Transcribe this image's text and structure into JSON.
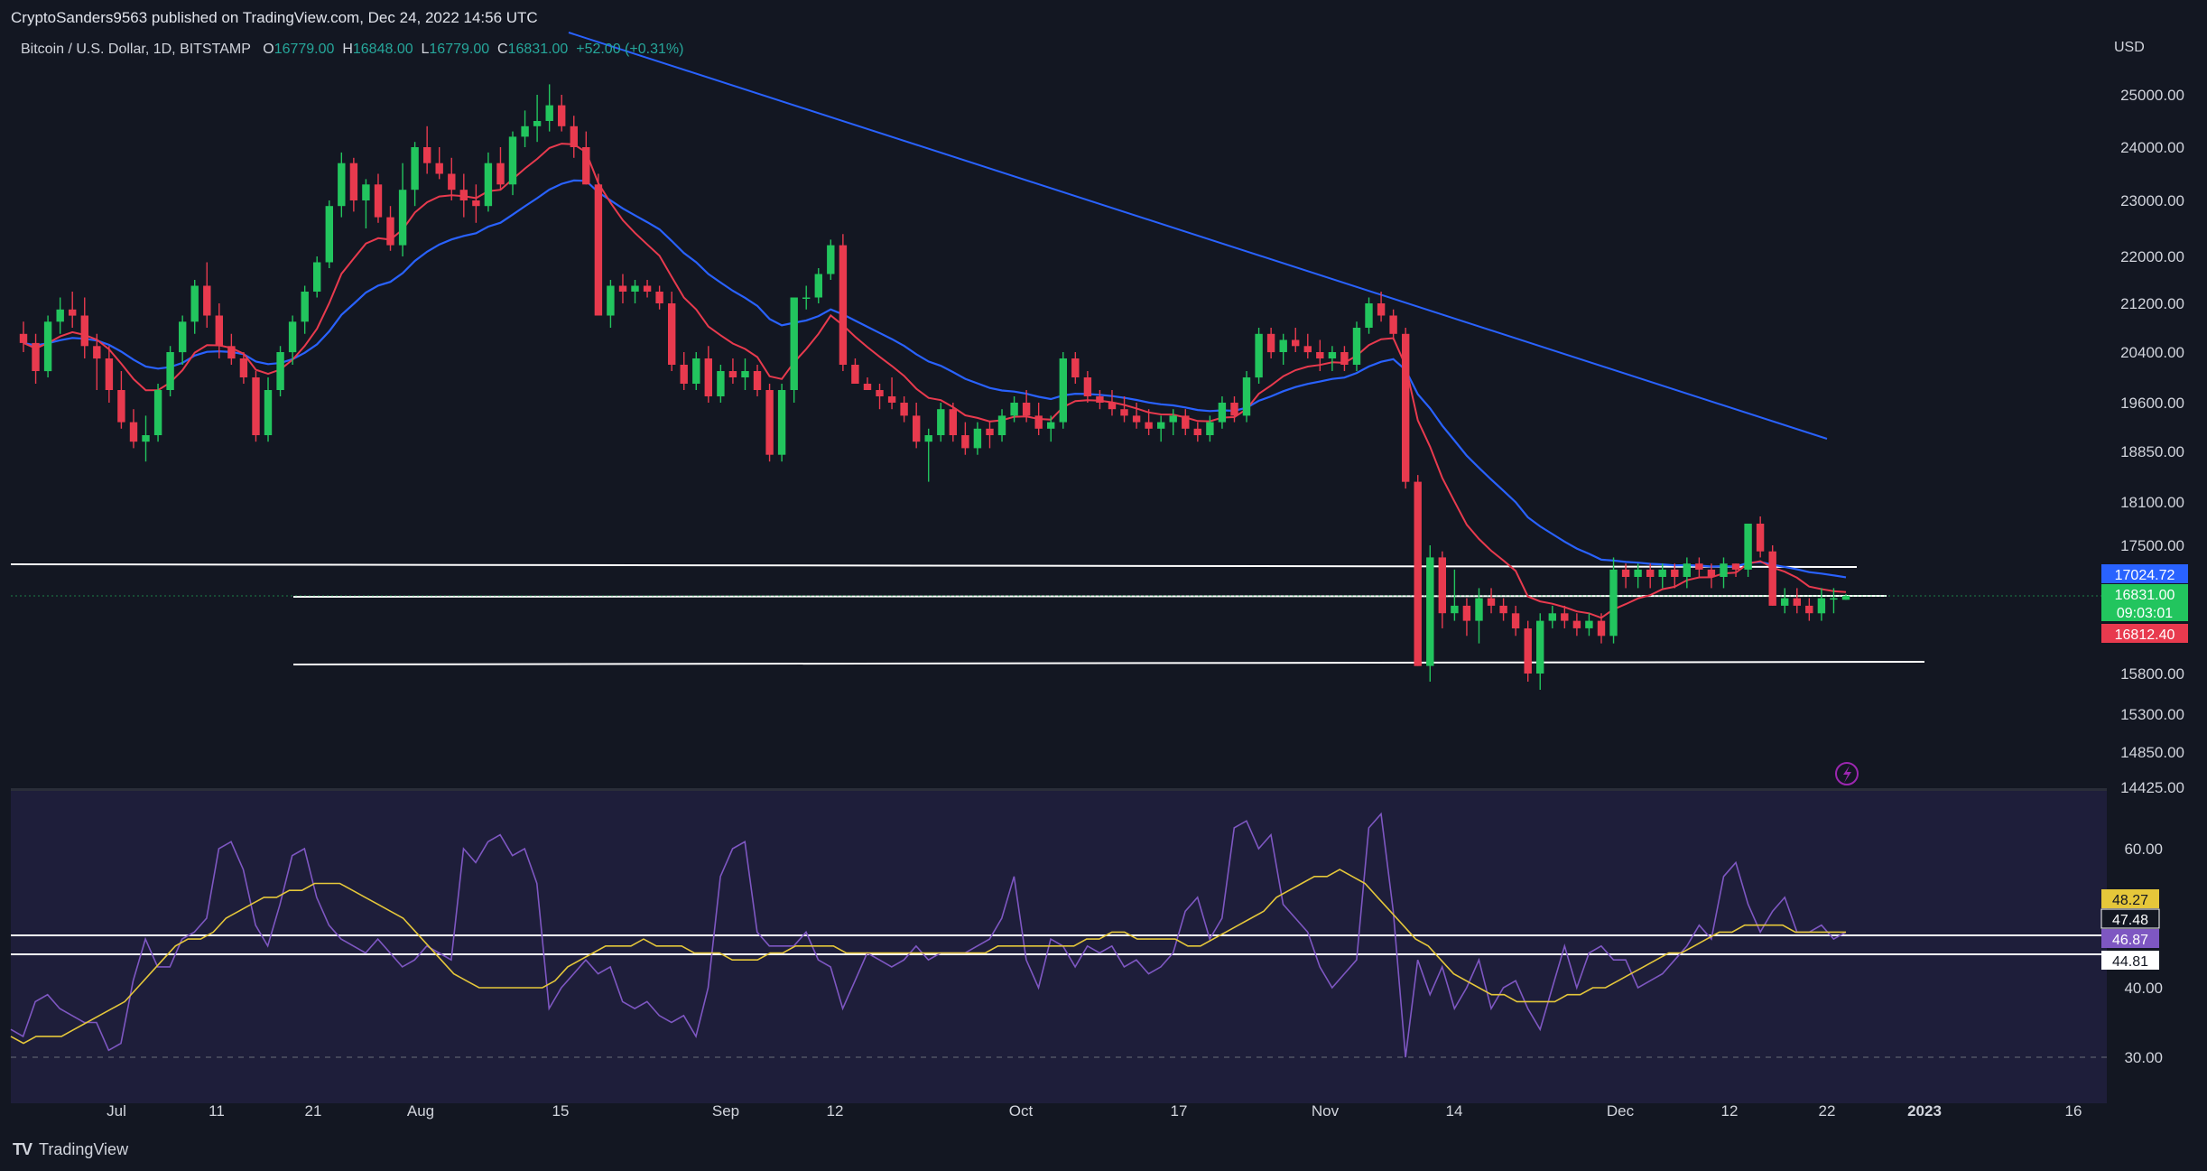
{
  "header": {
    "published": "CryptoSanders9563 published on TradingView.com, Dec 24, 2022 14:56 UTC"
  },
  "symbol": {
    "name": "Bitcoin / U.S. Dollar, 1D, BITSTAMP",
    "o_label": "O",
    "o_value": "16779.00",
    "h_label": "H",
    "h_value": "16848.00",
    "l_label": "L",
    "l_value": "16779.00",
    "c_label": "C",
    "c_value": "16831.00",
    "change": "+52.00 (+0.31%)"
  },
  "currency": "USD",
  "footer": {
    "brand": "TradingView"
  },
  "colors": {
    "background": "#131722",
    "rsi_background": "#1e1e3a",
    "up": "#22c55e",
    "down": "#e83a4e",
    "ema_fast": "#e83a4e",
    "ema_slow": "#2962ff",
    "rsi": "#7e57c2",
    "rsi_ma": "#e5c73a",
    "level_lines": "#ffffff"
  },
  "chart_data": [
    {
      "type": "candlestick",
      "title": "",
      "y_axis_ticks": [
        "25000.00",
        "24000.00",
        "23000.00",
        "22000.00",
        "21200.00",
        "20400.00",
        "19600.00",
        "18850.00",
        "18100.00",
        "17500.00",
        "15800.00",
        "15300.00",
        "14850.00",
        "14425.00"
      ],
      "x_axis_ticks": [
        "Jul",
        "11",
        "21",
        "Aug",
        "15",
        "Sep",
        "12",
        "Oct",
        "17",
        "Nov",
        "14",
        "Dec",
        "12",
        "22",
        "2023",
        "16"
      ],
      "price_badges": [
        {
          "value": "17024.72",
          "color": "#2962ff"
        },
        {
          "value": "16831.00",
          "color": "#22c55e"
        },
        {
          "value": "09:03:01",
          "color": "#22c55e"
        },
        {
          "value": "16812.40",
          "color": "#e83a4e"
        }
      ],
      "candles_ohlc": [
        [
          20700,
          20900,
          20400,
          20550
        ],
        [
          20550,
          20700,
          19900,
          20100
        ],
        [
          20100,
          21000,
          20000,
          20900
        ],
        [
          20900,
          21300,
          20700,
          21100
        ],
        [
          21100,
          21400,
          20800,
          21000
        ],
        [
          21000,
          21300,
          20300,
          20500
        ],
        [
          20500,
          20700,
          19800,
          20300
        ],
        [
          20300,
          20500,
          19600,
          19800
        ],
        [
          19800,
          20100,
          19200,
          19300
        ],
        [
          19300,
          19500,
          18900,
          19000
        ],
        [
          19000,
          19400,
          18700,
          19100
        ],
        [
          19100,
          19900,
          19000,
          19800
        ],
        [
          19800,
          20500,
          19700,
          20400
        ],
        [
          20400,
          21000,
          20200,
          20900
        ],
        [
          20900,
          21600,
          20700,
          21500
        ],
        [
          21500,
          21900,
          20800,
          21000
        ],
        [
          21000,
          21200,
          20300,
          20500
        ],
        [
          20500,
          20700,
          20200,
          20300
        ],
        [
          20300,
          20400,
          19900,
          20000
        ],
        [
          20000,
          20100,
          19000,
          19100
        ],
        [
          19100,
          20000,
          19000,
          19800
        ],
        [
          19800,
          20500,
          19700,
          20400
        ],
        [
          20400,
          21000,
          20200,
          20900
        ],
        [
          20900,
          21500,
          20700,
          21400
        ],
        [
          21400,
          22000,
          21300,
          21900
        ],
        [
          21900,
          23000,
          21800,
          22900
        ],
        [
          22900,
          23900,
          22700,
          23700
        ],
        [
          23700,
          23800,
          22800,
          23000
        ],
        [
          23000,
          23400,
          22500,
          23300
        ],
        [
          23300,
          23500,
          22600,
          22700
        ],
        [
          22700,
          22900,
          22100,
          22200
        ],
        [
          22200,
          23700,
          22000,
          23200
        ],
        [
          23200,
          24100,
          22900,
          24000
        ],
        [
          24000,
          24400,
          23500,
          23700
        ],
        [
          23700,
          24000,
          23400,
          23500
        ],
        [
          23500,
          23800,
          23000,
          23200
        ],
        [
          23200,
          23500,
          22700,
          23000
        ],
        [
          23000,
          23300,
          22600,
          22900
        ],
        [
          22900,
          23900,
          22800,
          23700
        ],
        [
          23700,
          24000,
          23200,
          23300
        ],
        [
          23300,
          24300,
          23100,
          24200
        ],
        [
          24200,
          24700,
          24000,
          24400
        ],
        [
          24400,
          25000,
          24100,
          24500
        ],
        [
          24500,
          25200,
          24300,
          24800
        ],
        [
          24800,
          25000,
          24300,
          24400
        ],
        [
          24400,
          24600,
          23800,
          24000
        ],
        [
          24000,
          24300,
          23300,
          23300
        ],
        [
          23300,
          23500,
          21000,
          21000
        ],
        [
          21000,
          21600,
          20800,
          21500
        ],
        [
          21500,
          21700,
          21200,
          21400
        ],
        [
          21400,
          21600,
          21200,
          21500
        ],
        [
          21500,
          21600,
          21300,
          21400
        ],
        [
          21400,
          21500,
          21100,
          21200
        ],
        [
          21200,
          21400,
          20100,
          20200
        ],
        [
          20200,
          20400,
          19800,
          19900
        ],
        [
          19900,
          20400,
          19800,
          20300
        ],
        [
          20300,
          20500,
          19600,
          19700
        ],
        [
          19700,
          20200,
          19600,
          20100
        ],
        [
          20100,
          20300,
          19900,
          20000
        ],
        [
          20000,
          20300,
          19800,
          20100
        ],
        [
          20100,
          20200,
          19700,
          19800
        ],
        [
          19800,
          19900,
          18700,
          18800
        ],
        [
          18800,
          19900,
          18700,
          19800
        ],
        [
          19800,
          21300,
          19600,
          21300
        ],
        [
          21300,
          21500,
          21100,
          21300
        ],
        [
          21300,
          21800,
          21200,
          21700
        ],
        [
          21700,
          22300,
          21600,
          22200
        ],
        [
          22200,
          22400,
          20100,
          20200
        ],
        [
          20200,
          20300,
          19900,
          19900
        ],
        [
          19900,
          20000,
          19800,
          19800
        ],
        [
          19800,
          19900,
          19500,
          19700
        ],
        [
          19700,
          20000,
          19500,
          19600
        ],
        [
          19600,
          19700,
          19300,
          19400
        ],
        [
          19400,
          19600,
          18900,
          19000
        ],
        [
          19000,
          19200,
          18400,
          19100
        ],
        [
          19100,
          19600,
          19000,
          19500
        ],
        [
          19500,
          19600,
          19000,
          19100
        ],
        [
          19100,
          19300,
          18800,
          18900
        ],
        [
          18900,
          19300,
          18800,
          19200
        ],
        [
          19200,
          19300,
          18900,
          19100
        ],
        [
          19100,
          19500,
          19000,
          19400
        ],
        [
          19400,
          19700,
          19300,
          19600
        ],
        [
          19600,
          19800,
          19300,
          19400
        ],
        [
          19400,
          19600,
          19100,
          19200
        ],
        [
          19200,
          19400,
          19000,
          19300
        ],
        [
          19300,
          20400,
          19200,
          20300
        ],
        [
          20300,
          20400,
          19900,
          20000
        ],
        [
          20000,
          20100,
          19600,
          19700
        ],
        [
          19700,
          19800,
          19500,
          19600
        ],
        [
          19600,
          19800,
          19400,
          19500
        ],
        [
          19500,
          19700,
          19300,
          19400
        ],
        [
          19400,
          19600,
          19200,
          19300
        ],
        [
          19300,
          19500,
          19100,
          19200
        ],
        [
          19200,
          19400,
          19000,
          19300
        ],
        [
          19300,
          19500,
          19100,
          19400
        ],
        [
          19400,
          19500,
          19100,
          19200
        ],
        [
          19200,
          19300,
          19000,
          19100
        ],
        [
          19100,
          19400,
          19000,
          19300
        ],
        [
          19300,
          19700,
          19200,
          19600
        ],
        [
          19600,
          19700,
          19300,
          19400
        ],
        [
          19400,
          20100,
          19300,
          20000
        ],
        [
          20000,
          20800,
          19900,
          20700
        ],
        [
          20700,
          20800,
          20300,
          20400
        ],
        [
          20400,
          20700,
          20200,
          20600
        ],
        [
          20600,
          20800,
          20400,
          20500
        ],
        [
          20500,
          20700,
          20300,
          20400
        ],
        [
          20400,
          20600,
          20100,
          20300
        ],
        [
          20300,
          20500,
          20100,
          20400
        ],
        [
          20400,
          20500,
          20100,
          20200
        ],
        [
          20200,
          20900,
          20100,
          20800
        ],
        [
          20800,
          21300,
          20700,
          21200
        ],
        [
          21200,
          21400,
          20900,
          21000
        ],
        [
          21000,
          21100,
          20600,
          20700
        ],
        [
          20700,
          20800,
          18300,
          18400
        ],
        [
          18400,
          18500,
          15900,
          15900
        ],
        [
          15900,
          17500,
          15700,
          17300
        ],
        [
          17300,
          17400,
          16400,
          16600
        ],
        [
          16600,
          17100,
          16500,
          16700
        ],
        [
          16700,
          16800,
          16300,
          16500
        ],
        [
          16500,
          16900,
          16200,
          16800
        ],
        [
          16800,
          16900,
          16600,
          16700
        ],
        [
          16700,
          16800,
          16500,
          16600
        ],
        [
          16600,
          16700,
          16300,
          16400
        ],
        [
          16400,
          16500,
          15700,
          15800
        ],
        [
          15800,
          16600,
          15600,
          16500
        ],
        [
          16500,
          16700,
          16400,
          16600
        ],
        [
          16600,
          16700,
          16400,
          16500
        ],
        [
          16500,
          16600,
          16300,
          16400
        ],
        [
          16400,
          16600,
          16300,
          16500
        ],
        [
          16500,
          16600,
          16200,
          16300
        ],
        [
          16300,
          17300,
          16200,
          17100
        ],
        [
          17100,
          17200,
          16900,
          17000
        ],
        [
          17000,
          17200,
          16900,
          17100
        ],
        [
          17100,
          17200,
          16900,
          17000
        ],
        [
          17000,
          17200,
          16900,
          17100
        ],
        [
          17100,
          17200,
          16900,
          17000
        ],
        [
          17000,
          17300,
          16900,
          17200
        ],
        [
          17200,
          17300,
          17000,
          17100
        ],
        [
          17100,
          17200,
          16900,
          17000
        ],
        [
          17000,
          17300,
          16900,
          17200
        ],
        [
          17200,
          17200,
          17000,
          17100
        ],
        [
          17100,
          17800,
          17000,
          17800
        ],
        [
          17800,
          17900,
          17300,
          17400
        ],
        [
          17400,
          17500,
          16700,
          16700
        ],
        [
          16700,
          16900,
          16600,
          16800
        ],
        [
          16800,
          16900,
          16600,
          16700
        ],
        [
          16700,
          16800,
          16500,
          16600
        ],
        [
          16600,
          16900,
          16500,
          16800
        ],
        [
          16800,
          16900,
          16600,
          16800
        ],
        [
          16779,
          16848,
          16779,
          16831
        ]
      ],
      "ema_fast_name": "",
      "ema_slow_name": "",
      "trendline": {
        "from": {
          "x": "Jun 28",
          "price": 25700
        },
        "to": {
          "x": "Dec 22",
          "price": 19000
        }
      },
      "horizontal_levels": [
        17000,
        16831,
        15950
      ]
    },
    {
      "type": "line",
      "title": "",
      "y_axis_ticks": [
        "60.00",
        "40.00",
        "30.00"
      ],
      "level_badges": [
        {
          "value": "48.27",
          "color": "#e5c73a"
        },
        {
          "value": "47.48",
          "color": "#131722"
        },
        {
          "value": "46.87",
          "color": "#7e57c2"
        },
        {
          "value": "44.81",
          "color": "#ffffff"
        }
      ],
      "rsi_values": [
        34,
        33,
        38,
        39,
        37,
        36,
        35,
        35,
        31,
        32,
        41,
        47,
        43,
        43,
        47,
        48,
        50,
        60,
        61,
        57,
        49,
        46,
        52,
        59,
        60,
        53,
        49,
        47,
        46,
        45,
        47,
        45,
        43,
        44,
        46,
        45,
        44,
        60,
        58,
        61,
        62,
        59,
        60,
        55,
        37,
        40,
        42,
        44,
        42,
        43,
        38,
        37,
        38,
        36,
        35,
        36,
        33,
        40,
        56,
        60,
        61,
        48,
        46,
        46,
        46,
        48,
        44,
        43,
        37,
        41,
        45,
        44,
        43,
        44,
        46,
        44,
        45,
        45,
        45,
        46,
        47,
        50,
        56,
        44,
        40,
        47,
        46,
        43,
        46,
        45,
        46,
        43,
        44,
        42,
        43,
        45,
        51,
        53,
        47,
        50,
        63,
        64,
        60,
        62,
        52,
        50,
        48,
        43,
        40,
        42,
        44,
        63,
        65,
        51,
        30,
        44,
        39,
        43,
        37,
        40,
        44,
        37,
        40,
        41,
        37,
        34,
        40,
        46,
        40,
        45,
        46,
        44,
        44,
        40,
        41,
        42,
        44,
        46,
        49,
        47,
        56,
        58,
        52,
        48,
        51,
        53,
        48,
        48,
        49,
        47,
        48
      ],
      "rsi_ma_values": [
        33,
        32,
        33,
        33,
        33,
        34,
        35,
        36,
        37,
        38,
        40,
        42,
        44,
        46,
        47,
        47,
        48,
        50,
        51,
        52,
        53,
        53,
        54,
        54,
        55,
        55,
        55,
        54,
        53,
        52,
        51,
        50,
        48,
        46,
        44,
        42,
        41,
        40,
        40,
        40,
        40,
        40,
        40,
        41,
        43,
        44,
        45,
        46,
        46,
        46,
        47,
        46,
        46,
        46,
        45,
        45,
        45,
        44,
        44,
        44,
        45,
        45,
        46,
        46,
        46,
        46,
        45,
        45,
        45,
        45,
        45,
        45,
        45,
        45,
        45,
        45,
        45,
        45,
        46,
        46,
        46,
        46,
        46,
        46,
        46,
        47,
        47,
        48,
        48,
        47,
        47,
        47,
        47,
        46,
        46,
        47,
        48,
        49,
        50,
        51,
        53,
        54,
        55,
        56,
        56,
        57,
        56,
        55,
        53,
        51,
        49,
        47,
        46,
        44,
        42,
        41,
        40,
        39,
        39,
        38,
        38,
        38,
        38,
        39,
        39,
        40,
        40,
        41,
        42,
        43,
        44,
        45,
        45,
        46,
        47,
        48,
        48,
        49,
        49,
        49,
        49,
        48,
        48,
        48,
        48,
        48
      ],
      "horizontal_levels": [
        47.48,
        46.87,
        44.81,
        30
      ]
    }
  ]
}
